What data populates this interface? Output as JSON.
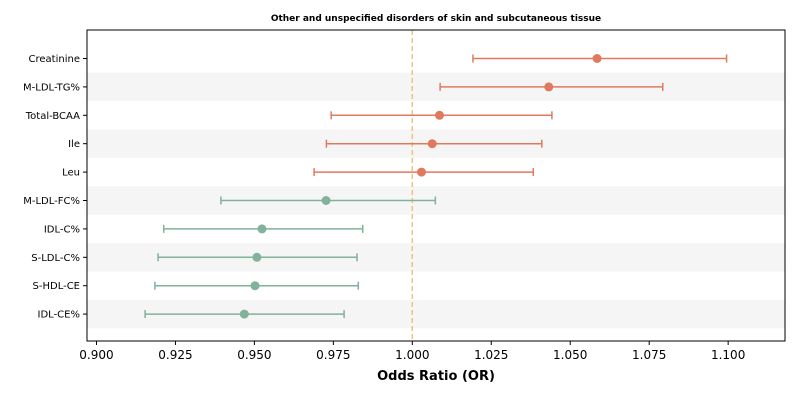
{
  "chart_data": {
    "type": "forest",
    "title": "Other and unspecified disorders of skin and subcutaneous tissue",
    "xlabel": "Odds Ratio (OR)",
    "xlim": [
      0.897,
      1.118
    ],
    "xticks": [
      "0.900",
      "0.925",
      "0.950",
      "0.975",
      "1.000",
      "1.025",
      "1.050",
      "1.075",
      "1.100"
    ],
    "reference_line": 1.0,
    "reference_color": "#f0c27a",
    "stripe_color": "#f5f5f5",
    "colors": {
      "positive": "#e07a5f",
      "negative": "#81b29a"
    },
    "categories": [
      "Creatinine",
      "M-LDL-TG%",
      "Total-BCAA",
      "Ile",
      "Leu",
      "M-LDL-FC%",
      "IDL-C%",
      "S-LDL-C%",
      "S-HDL-CE",
      "IDL-CE%"
    ],
    "estimates": [
      1.0585,
      1.0432,
      1.0086,
      1.0063,
      1.0029,
      0.9727,
      0.9524,
      0.9508,
      0.9502,
      0.9468
    ],
    "lower": [
      1.0192,
      1.0088,
      0.9743,
      0.9728,
      0.9689,
      0.9394,
      0.9213,
      0.9195,
      0.9185,
      0.9154
    ],
    "upper": [
      1.0995,
      1.0793,
      1.0442,
      1.041,
      1.0383,
      1.0073,
      0.9843,
      0.9825,
      0.9829,
      0.9784
    ]
  }
}
